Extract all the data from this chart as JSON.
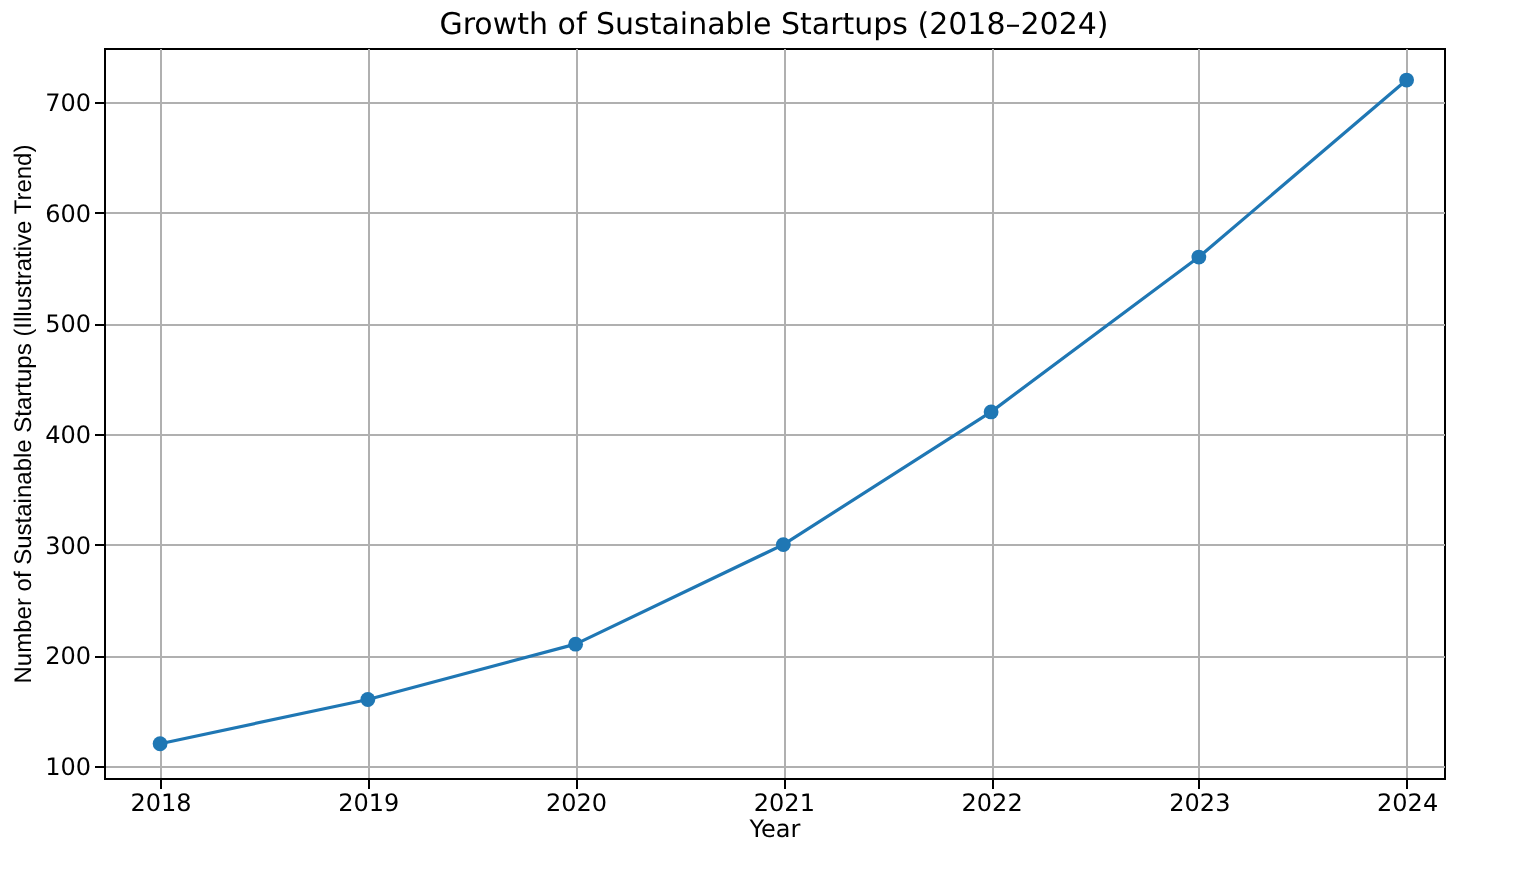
{
  "chart_data": {
    "type": "line",
    "title": "Growth of Sustainable Startups (2018–2024)",
    "xlabel": "Year",
    "ylabel": "Number of Sustainable Startups (Illustrative Trend)",
    "x": [
      2018,
      2019,
      2020,
      2021,
      2022,
      2023,
      2024
    ],
    "series": [
      {
        "color": "#1f77b4",
        "values": [
          120,
          160,
          210,
          300,
          420,
          560,
          720
        ]
      }
    ],
    "xlim": [
      2017.73,
      2024.18
    ],
    "xticks": [
      2018,
      2019,
      2020,
      2021,
      2022,
      2023,
      2024
    ],
    "ylim": [
      89,
      749
    ],
    "yticks": [
      100,
      200,
      300,
      400,
      500,
      600,
      700
    ],
    "grid": true,
    "marker": "circle",
    "line_style": "solid"
  }
}
